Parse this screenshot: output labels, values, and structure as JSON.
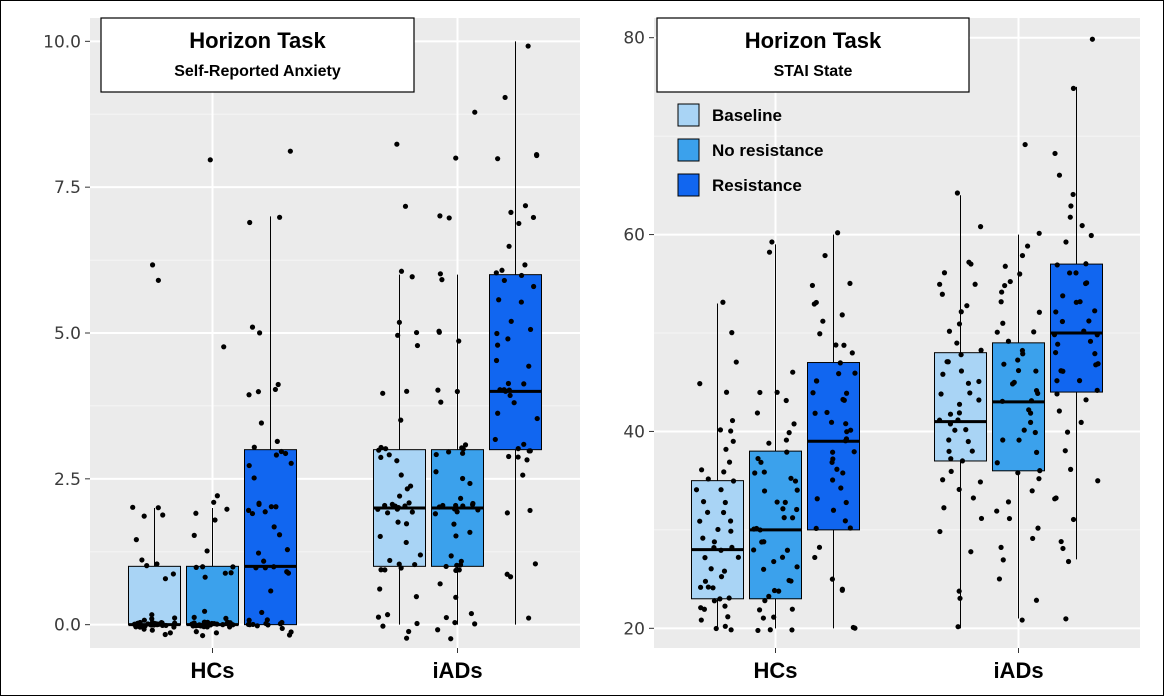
{
  "chart_data": [
    {
      "type": "box",
      "title": "Horizon Task",
      "subtitle": "Self-Reported Anxiety",
      "categories": [
        "HCs",
        "iADs"
      ],
      "ylim": [
        -0.4,
        10.4
      ],
      "yticks": [
        "0.0",
        "2.5",
        "5.0",
        "7.5",
        "10.0"
      ],
      "ytick_values": [
        0,
        2.5,
        5,
        7.5,
        10
      ],
      "series": [
        {
          "name": "Baseline",
          "color": "#a9d4f5",
          "boxes": [
            {
              "q1": 0,
              "median": 0,
              "q3": 1,
              "whisker_low": 0,
              "whisker_high": 2,
              "points": [
                0,
                0,
                0,
                0,
                0,
                0,
                0,
                0,
                0,
                0,
                0,
                0,
                0,
                0,
                0,
                0,
                0,
                0,
                0,
                0,
                0,
                0,
                0,
                0,
                0,
                0,
                0,
                0,
                0,
                0,
                0.1,
                0.1,
                0.2,
                -0.1,
                -0.1,
                -0.2,
                0.1,
                -0.1,
                0.9,
                0.8,
                1,
                1,
                1.1,
                1.9,
                1.9,
                2,
                2,
                1.5,
                6.2,
                5.9
              ]
            },
            {
              "q1": 1,
              "median": 2,
              "q3": 3,
              "whisker_low": 0,
              "whisker_high": 6,
              "points": [
                0,
                0,
                0.1,
                -0.1,
                -0.2,
                0.2,
                0.9,
                0.9,
                1,
                1,
                1,
                1.1,
                1.5,
                1.9,
                1.9,
                2,
                2,
                2,
                2,
                2,
                2,
                2.1,
                2.1,
                2.9,
                2.9,
                3,
                3,
                3,
                2.8,
                2.6,
                3.5,
                4,
                4,
                4.8,
                5,
                5,
                5.2,
                6,
                6.1,
                7.2,
                8.2,
                1.2,
                1.4,
                2.4,
                2.2,
                0.5,
                0.6,
                1.8,
                1.7,
                2.3
              ]
            }
          ]
        },
        {
          "name": "No resistance",
          "color": "#3ba1ec",
          "boxes": [
            {
              "q1": 0,
              "median": 0,
              "q3": 1,
              "whisker_low": 0,
              "whisker_high": 2,
              "points": [
                0,
                0,
                0,
                0,
                0,
                0,
                0,
                0,
                0,
                0,
                0,
                0,
                0,
                0,
                0,
                0,
                0,
                0,
                0,
                0,
                0,
                0,
                0,
                0,
                0,
                0,
                0,
                0,
                0.1,
                0.1,
                -0.1,
                -0.1,
                -0.2,
                0.2,
                0.9,
                0.9,
                1,
                1,
                1,
                0.8,
                1.8,
                1.9,
                2,
                2.1,
                2.2,
                1.5,
                1.3,
                4.8,
                8
              ]
            },
            {
              "q1": 1,
              "median": 2,
              "q3": 3,
              "whisker_low": 0,
              "whisker_high": 6,
              "points": [
                0,
                0,
                0.1,
                -0.1,
                -0.2,
                0.2,
                0.9,
                0.9,
                1,
                1,
                1,
                1.1,
                1.9,
                1.9,
                2,
                2,
                2,
                2,
                2,
                2,
                2.1,
                2.1,
                2.2,
                2.9,
                2.9,
                3,
                3,
                3,
                3.1,
                2.6,
                3.8,
                4,
                4,
                4.9,
                5,
                5,
                5.9,
                6,
                7,
                7,
                8,
                8.8,
                1.2,
                1.5,
                2.4,
                2.5,
                0.5,
                0.7,
                1.7,
                1.6
              ]
            }
          ]
        },
        {
          "name": "Resistance",
          "color": "#1166f0",
          "boxes": [
            {
              "q1": 0,
              "median": 1,
              "q3": 3,
              "whisker_low": 0,
              "whisker_high": 7,
              "points": [
                0,
                0,
                0,
                0,
                0,
                0,
                0,
                0,
                0.1,
                0.1,
                -0.1,
                -0.1,
                -0.2,
                0.2,
                0.9,
                0.9,
                1,
                1,
                1,
                1.1,
                1.9,
                1.9,
                2,
                2,
                2,
                2.1,
                2.1,
                2.9,
                2.9,
                3,
                3,
                3.1,
                2.7,
                3.5,
                3.9,
                4,
                4,
                5,
                5.1,
                6.9,
                7,
                8.1,
                1.3,
                1.5,
                2.5,
                0.6,
                1.7,
                2.8,
                1.2,
                4.1
              ]
            },
            {
              "q1": 3,
              "median": 4,
              "q3": 6,
              "whisker_low": 0,
              "whisker_high": 10,
              "points": [
                0.1,
                0.8,
                0.9,
                1,
                1.9,
                2,
                2.8,
                2.9,
                2.9,
                3,
                3,
                3,
                3.1,
                3.2,
                3.5,
                3.8,
                3.9,
                4,
                4,
                4,
                4,
                4.1,
                4.1,
                4.5,
                4.8,
                4.9,
                5,
                5.1,
                5.2,
                5.5,
                5.8,
                5.9,
                6,
                6,
                6.1,
                6.2,
                6.5,
                6.9,
                7,
                7.1,
                7.2,
                8,
                8,
                8.1,
                9,
                9.9,
                2.6,
                3.6,
                4.4,
                5.6
              ]
            }
          ]
        }
      ]
    },
    {
      "type": "box",
      "title": "Horizon Task",
      "subtitle": "STAI State",
      "categories": [
        "HCs",
        "iADs"
      ],
      "ylim": [
        18,
        82
      ],
      "yticks": [
        "20",
        "40",
        "60",
        "80"
      ],
      "ytick_values": [
        20,
        40,
        60,
        80
      ],
      "legend": [
        "Baseline",
        "No resistance",
        "Resistance"
      ],
      "series": [
        {
          "name": "Baseline",
          "color": "#a9d4f5",
          "boxes": [
            {
              "q1": 23,
              "median": 28,
              "q3": 35,
              "whisker_low": 20,
              "whisker_high": 53,
              "points": [
                20,
                20,
                20,
                21,
                21,
                22,
                22,
                22,
                23,
                23,
                23,
                24,
                24,
                24,
                25,
                25,
                26,
                26,
                27,
                27,
                28,
                28,
                28,
                29,
                29,
                30,
                30,
                31,
                31,
                32,
                32,
                33,
                33,
                34,
                34,
                35,
                35,
                36,
                36,
                37,
                38,
                39,
                40,
                40,
                41,
                44,
                45,
                47,
                50,
                53
              ]
            },
            {
              "q1": 37,
              "median": 41,
              "q3": 48,
              "whisker_low": 20,
              "whisker_high": 64,
              "points": [
                20,
                23,
                24,
                28,
                30,
                31,
                32,
                33,
                34,
                35,
                35,
                36,
                37,
                37,
                38,
                38,
                39,
                39,
                40,
                40,
                41,
                41,
                41,
                42,
                42,
                43,
                43,
                44,
                44,
                45,
                45,
                46,
                46,
                47,
                47,
                48,
                48,
                49,
                50,
                51,
                52,
                53,
                54,
                55,
                55,
                56,
                57,
                57,
                61,
                64
              ]
            }
          ]
        },
        {
          "name": "No resistance",
          "color": "#3ba1ec",
          "boxes": [
            {
              "q1": 23,
              "median": 30,
              "q3": 38,
              "whisker_low": 20,
              "whisker_high": 59,
              "points": [
                20,
                20,
                20,
                21,
                21,
                22,
                22,
                23,
                23,
                24,
                24,
                25,
                25,
                26,
                26,
                27,
                27,
                28,
                28,
                29,
                29,
                30,
                30,
                30,
                31,
                31,
                32,
                32,
                33,
                33,
                34,
                34,
                35,
                35,
                36,
                36,
                37,
                37,
                38,
                39,
                39,
                40,
                41,
                42,
                43,
                44,
                44,
                46,
                58,
                59
              ]
            },
            {
              "q1": 36,
              "median": 43,
              "q3": 49,
              "whisker_low": 21,
              "whisker_high": 60,
              "points": [
                21,
                23,
                25,
                27,
                28,
                29,
                30,
                31,
                32,
                33,
                34,
                35,
                36,
                36,
                37,
                38,
                39,
                39,
                40,
                40,
                41,
                42,
                42,
                43,
                43,
                44,
                44,
                45,
                45,
                46,
                46,
                47,
                47,
                48,
                48,
                49,
                50,
                50,
                51,
                52,
                53,
                54,
                55,
                55,
                56,
                57,
                58,
                59,
                60,
                69
              ]
            }
          ]
        },
        {
          "name": "Resistance",
          "color": "#1166f0",
          "boxes": [
            {
              "q1": 30,
              "median": 39,
              "q3": 47,
              "whisker_low": 20,
              "whisker_high": 60,
              "points": [
                20,
                20,
                24,
                24,
                25,
                27,
                28,
                30,
                30,
                31,
                32,
                33,
                33,
                34,
                35,
                36,
                36,
                37,
                37,
                38,
                38,
                39,
                39,
                40,
                40,
                41,
                41,
                42,
                42,
                43,
                43,
                44,
                44,
                45,
                45,
                46,
                46,
                47,
                48,
                49,
                49,
                50,
                51,
                52,
                53,
                53,
                55,
                55,
                58,
                60
              ]
            },
            {
              "q1": 44,
              "median": 50,
              "q3": 57,
              "whisker_low": 27,
              "whisker_high": 75,
              "points": [
                21,
                27,
                28,
                29,
                31,
                33,
                33,
                35,
                36,
                38,
                40,
                41,
                42,
                43,
                44,
                44,
                45,
                45,
                46,
                46,
                47,
                47,
                48,
                48,
                49,
                49,
                50,
                50,
                50,
                51,
                51,
                52,
                52,
                53,
                53,
                54,
                55,
                55,
                56,
                56,
                57,
                57,
                59,
                60,
                61,
                62,
                63,
                64,
                66,
                68,
                75,
                80
              ]
            }
          ]
        }
      ]
    }
  ]
}
